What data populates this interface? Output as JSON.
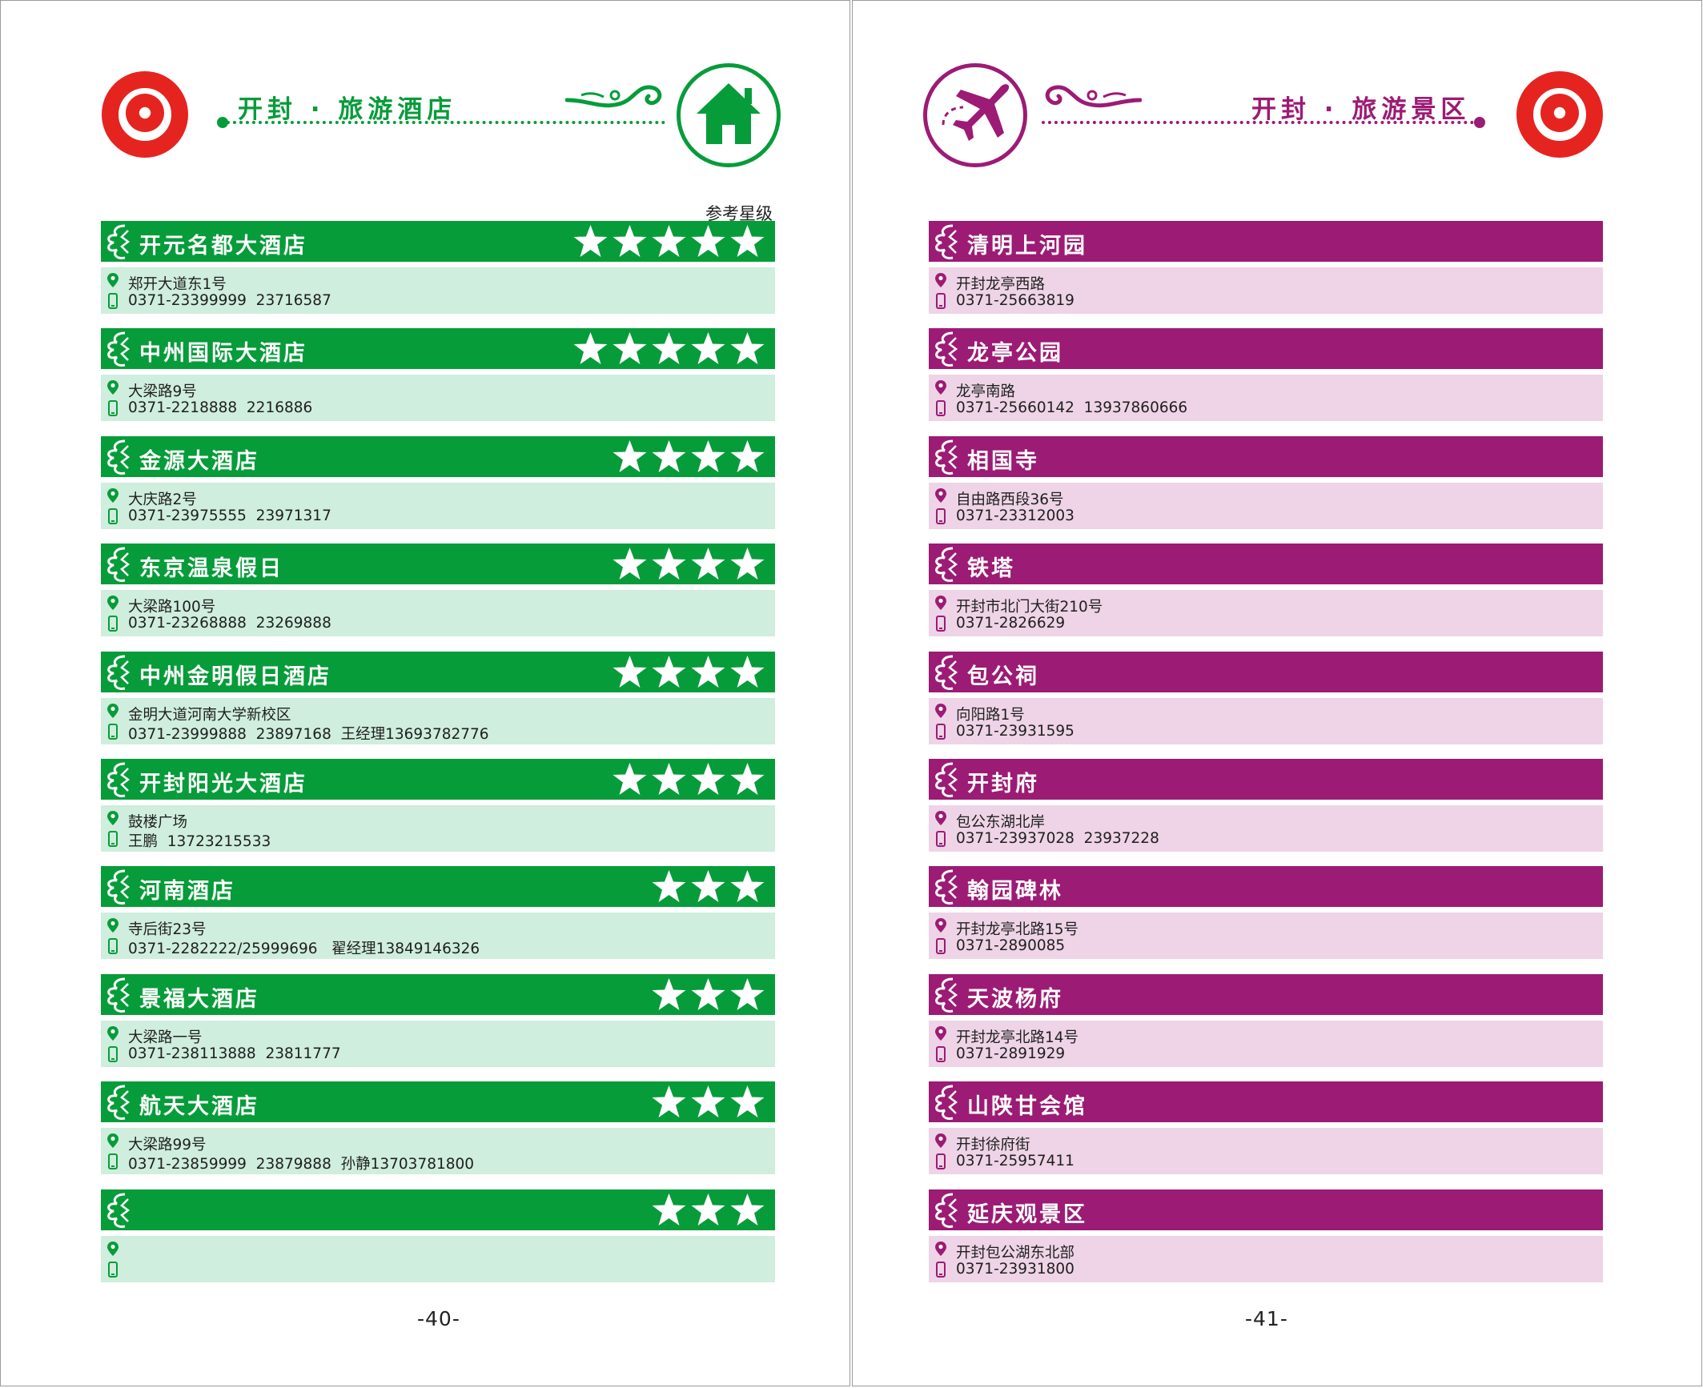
{
  "left_page": {
    "section_title": "开封 · 旅游酒店",
    "accent_color": "#079c3a",
    "light_color": "#cfeedd",
    "icon": "house-icon",
    "rating_label": "参考星级",
    "page_number": "-40-",
    "hotels": [
      {
        "name": "开元名都大酒店",
        "stars": 5,
        "address": "郑开大道东1号",
        "phone": "0371-23399999  23716587"
      },
      {
        "name": "中州国际大酒店",
        "stars": 5,
        "address": "大梁路9号",
        "phone": "0371-2218888  2216886"
      },
      {
        "name": "金源大酒店",
        "stars": 4,
        "address": "大庆路2号",
        "phone": "0371-23975555  23971317"
      },
      {
        "name": "东京温泉假日",
        "stars": 4,
        "address": "大梁路100号",
        "phone": "0371-23268888  23269888"
      },
      {
        "name": "中州金明假日酒店",
        "stars": 4,
        "address": "金明大道河南大学新校区",
        "phone": "0371-23999888  23897168  王经理13693782776"
      },
      {
        "name": "开封阳光大酒店",
        "stars": 4,
        "address": "鼓楼广场",
        "phone": "王鹏  13723215533"
      },
      {
        "name": "河南酒店",
        "stars": 3,
        "address": "寺后街23号",
        "phone": "0371-2282222/25999696   翟经理13849146326"
      },
      {
        "name": "景福大酒店",
        "stars": 3,
        "address": "大梁路一号",
        "phone": "0371-238113888  23811777"
      },
      {
        "name": "航天大酒店",
        "stars": 3,
        "address": "大梁路99号",
        "phone": "0371-23859999  23879888  孙静13703781800"
      },
      {
        "name": "",
        "stars": 3,
        "address": "",
        "phone": ""
      }
    ]
  },
  "right_page": {
    "section_title": "开封 · 旅游景区",
    "accent_color": "#9c1b75",
    "light_color": "#eed4e6",
    "icon": "airplane-icon",
    "page_number": "-41-",
    "sights": [
      {
        "name": "清明上河园",
        "address": "开封龙亭西路",
        "phone": "0371-25663819"
      },
      {
        "name": "龙亭公园",
        "address": "龙亭南路",
        "phone": "0371-25660142  13937860666"
      },
      {
        "name": "相国寺",
        "address": "自由路西段36号",
        "phone": "0371-23312003"
      },
      {
        "name": "铁塔",
        "address": "开封市北门大街210号",
        "phone": "0371-2826629"
      },
      {
        "name": "包公祠",
        "address": "向阳路1号",
        "phone": "0371-23931595"
      },
      {
        "name": "开封府",
        "address": "包公东湖北岸",
        "phone": "0371-23937028  23937228"
      },
      {
        "name": "翰园碑林",
        "address": "开封龙亭北路15号",
        "phone": "0371-2890085"
      },
      {
        "name": "天波杨府",
        "address": "开封龙亭北路14号",
        "phone": "0371-2891929"
      },
      {
        "name": "山陕甘会馆",
        "address": "开封徐府街",
        "phone": "0371-25957411"
      },
      {
        "name": "延庆观景区",
        "address": "开封包公湖东北部",
        "phone": "0371-23931800"
      }
    ]
  }
}
